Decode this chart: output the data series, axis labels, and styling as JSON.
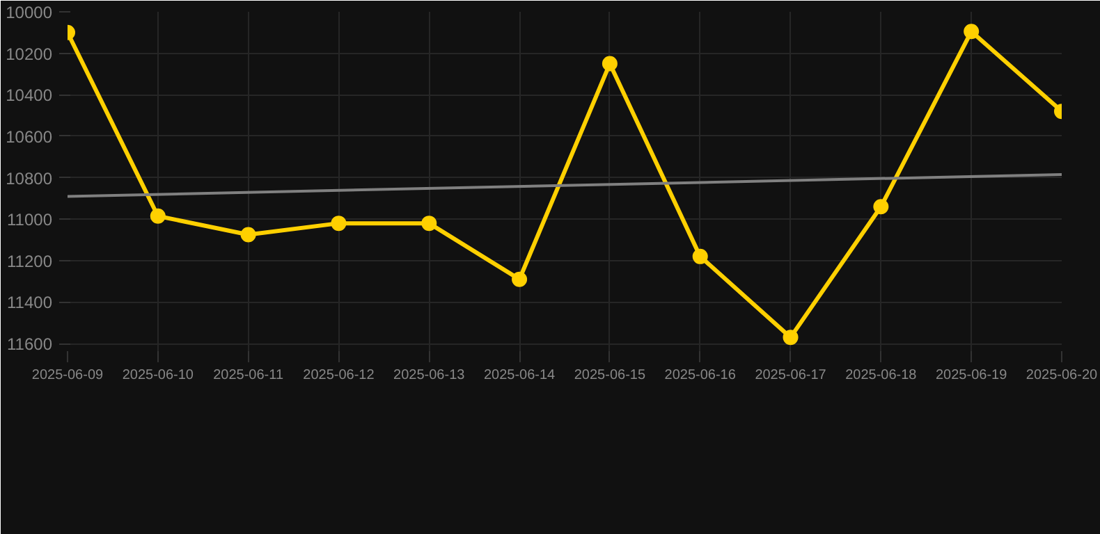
{
  "chart_data": {
    "type": "line",
    "x": [
      "2025-06-09",
      "2025-06-10",
      "2025-06-11",
      "2025-06-12",
      "2025-06-13",
      "2025-06-14",
      "2025-06-15",
      "2025-06-16",
      "2025-06-17",
      "2025-06-18",
      "2025-06-19",
      "2025-06-20"
    ],
    "series": [
      {
        "color": "#ffd000",
        "marker": "circle",
        "values": [
          10100,
          10985,
          11075,
          11020,
          11020,
          11290,
          10250,
          11180,
          11570,
          10940,
          10095,
          10480
        ]
      },
      {
        "color": "#808080",
        "marker": "none",
        "x": [
          "2025-06-09",
          "2025-06-20"
        ],
        "values": [
          10890,
          10785
        ]
      }
    ],
    "ylim": [
      11650,
      10000
    ],
    "yticks": [
      10000,
      10200,
      10400,
      10600,
      10800,
      11000,
      11200,
      11400,
      11600
    ],
    "xlim": [
      "2025-06-09",
      "2025-06-20"
    ],
    "xticks": [
      "2025-06-09",
      "2025-06-10",
      "2025-06-11",
      "2025-06-12",
      "2025-06-13",
      "2025-06-14",
      "2025-06-15",
      "2025-06-16",
      "2025-06-17",
      "2025-06-18",
      "2025-06-19",
      "2025-06-20"
    ],
    "grid": true
  }
}
